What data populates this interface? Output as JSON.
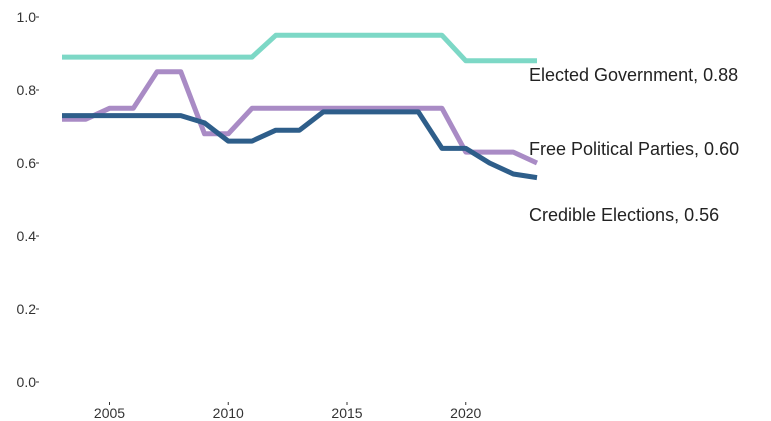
{
  "chart_data": {
    "type": "line",
    "title": "",
    "xlabel": "",
    "ylabel": "",
    "xlim": [
      2003,
      2023
    ],
    "ylim": [
      0,
      1.0
    ],
    "x_ticks": [
      "2005",
      "2010",
      "2015",
      "2020"
    ],
    "y_ticks": [
      "0.0",
      "0.2",
      "0.4",
      "0.6",
      "0.8",
      "1.0"
    ],
    "grid": false,
    "legend": "direct labels at line ends",
    "x": [
      2003,
      2004,
      2005,
      2006,
      2007,
      2008,
      2009,
      2010,
      2011,
      2012,
      2013,
      2014,
      2015,
      2016,
      2017,
      2018,
      2019,
      2020,
      2021,
      2022,
      2023
    ],
    "series": [
      {
        "name": "Elected Government",
        "end_label": "Elected Government, 0.88",
        "color": "#7dd8c6",
        "values": [
          0.89,
          0.89,
          0.89,
          0.89,
          0.89,
          0.89,
          0.89,
          0.89,
          0.89,
          0.95,
          0.95,
          0.95,
          0.95,
          0.95,
          0.95,
          0.95,
          0.95,
          0.88,
          0.88,
          0.88,
          0.88
        ]
      },
      {
        "name": "Free Political Parties",
        "end_label": "Free Political Parties, 0.60",
        "color": "#a98bc5",
        "values": [
          0.72,
          0.72,
          0.75,
          0.75,
          0.85,
          0.85,
          0.68,
          0.68,
          0.75,
          0.75,
          0.75,
          0.75,
          0.75,
          0.75,
          0.75,
          0.75,
          0.75,
          0.63,
          0.63,
          0.63,
          0.6
        ]
      },
      {
        "name": "Credible Elections",
        "end_label": "Credible Elections, 0.56",
        "color": "#2e5e8a",
        "values": [
          0.73,
          0.73,
          0.73,
          0.73,
          0.73,
          0.73,
          0.71,
          0.66,
          0.66,
          0.69,
          0.69,
          0.74,
          0.74,
          0.74,
          0.74,
          0.74,
          0.64,
          0.64,
          0.6,
          0.57,
          0.56
        ]
      }
    ]
  }
}
